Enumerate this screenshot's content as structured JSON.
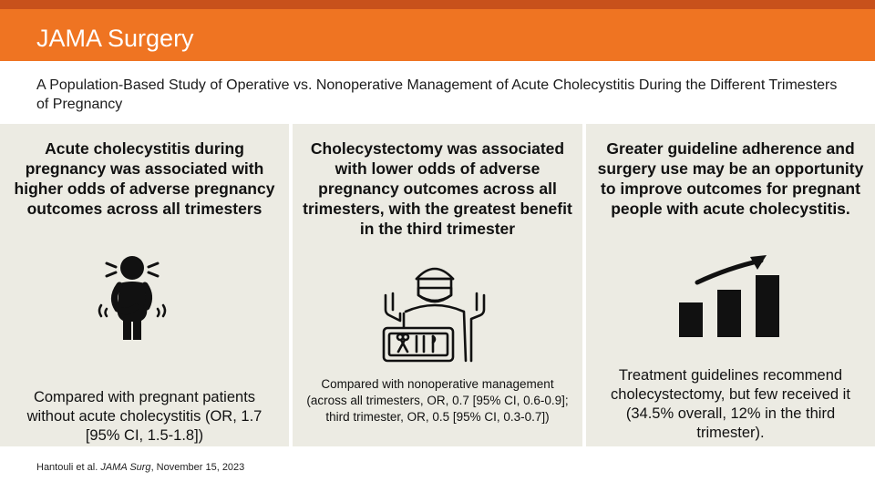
{
  "header": {
    "journal": "JAMA Surgery"
  },
  "title": "A Population-Based Study of Operative vs. Nonoperative Management of Acute Cholecystitis During the Different Trimesters of Pregnancy",
  "panels": [
    {
      "heading": "Acute cholecystitis during pregnancy was associated with higher odds of adverse pregnancy outcomes across all trimesters",
      "icon": "pregnant-abdominal-pain-icon",
      "note": "Compared with pregnant patients without acute cholecystitis (OR, 1.7 [95% CI, 1.5-1.8])"
    },
    {
      "heading": "Cholecystectomy was associated with lower odds of adverse pregnancy outcomes across all trimesters, with the greatest benefit in the third trimester",
      "icon": "surgeon-icon",
      "note": "Compared with nonoperative management (across all trimesters, OR, 0.7 [95% CI, 0.6-0.9]; third trimester, OR, 0.5 [95% CI, 0.3-0.7])"
    },
    {
      "heading": "Greater guideline adherence and surgery use may be an opportunity to improve outcomes for pregnant people with acute cholecystitis.",
      "icon": "growth-chart-icon",
      "note": "Treatment guidelines recommend cholecystectomy, but few received it (34.5% overall, 12% in the third trimester)."
    }
  ],
  "citation": {
    "authors": "Hantouli et al.",
    "journal": "JAMA Surg",
    "date": ", November 15, 2023"
  },
  "colors": {
    "header": "#ef7422",
    "strip": "#c8511b",
    "panel": "#ecebe3"
  }
}
